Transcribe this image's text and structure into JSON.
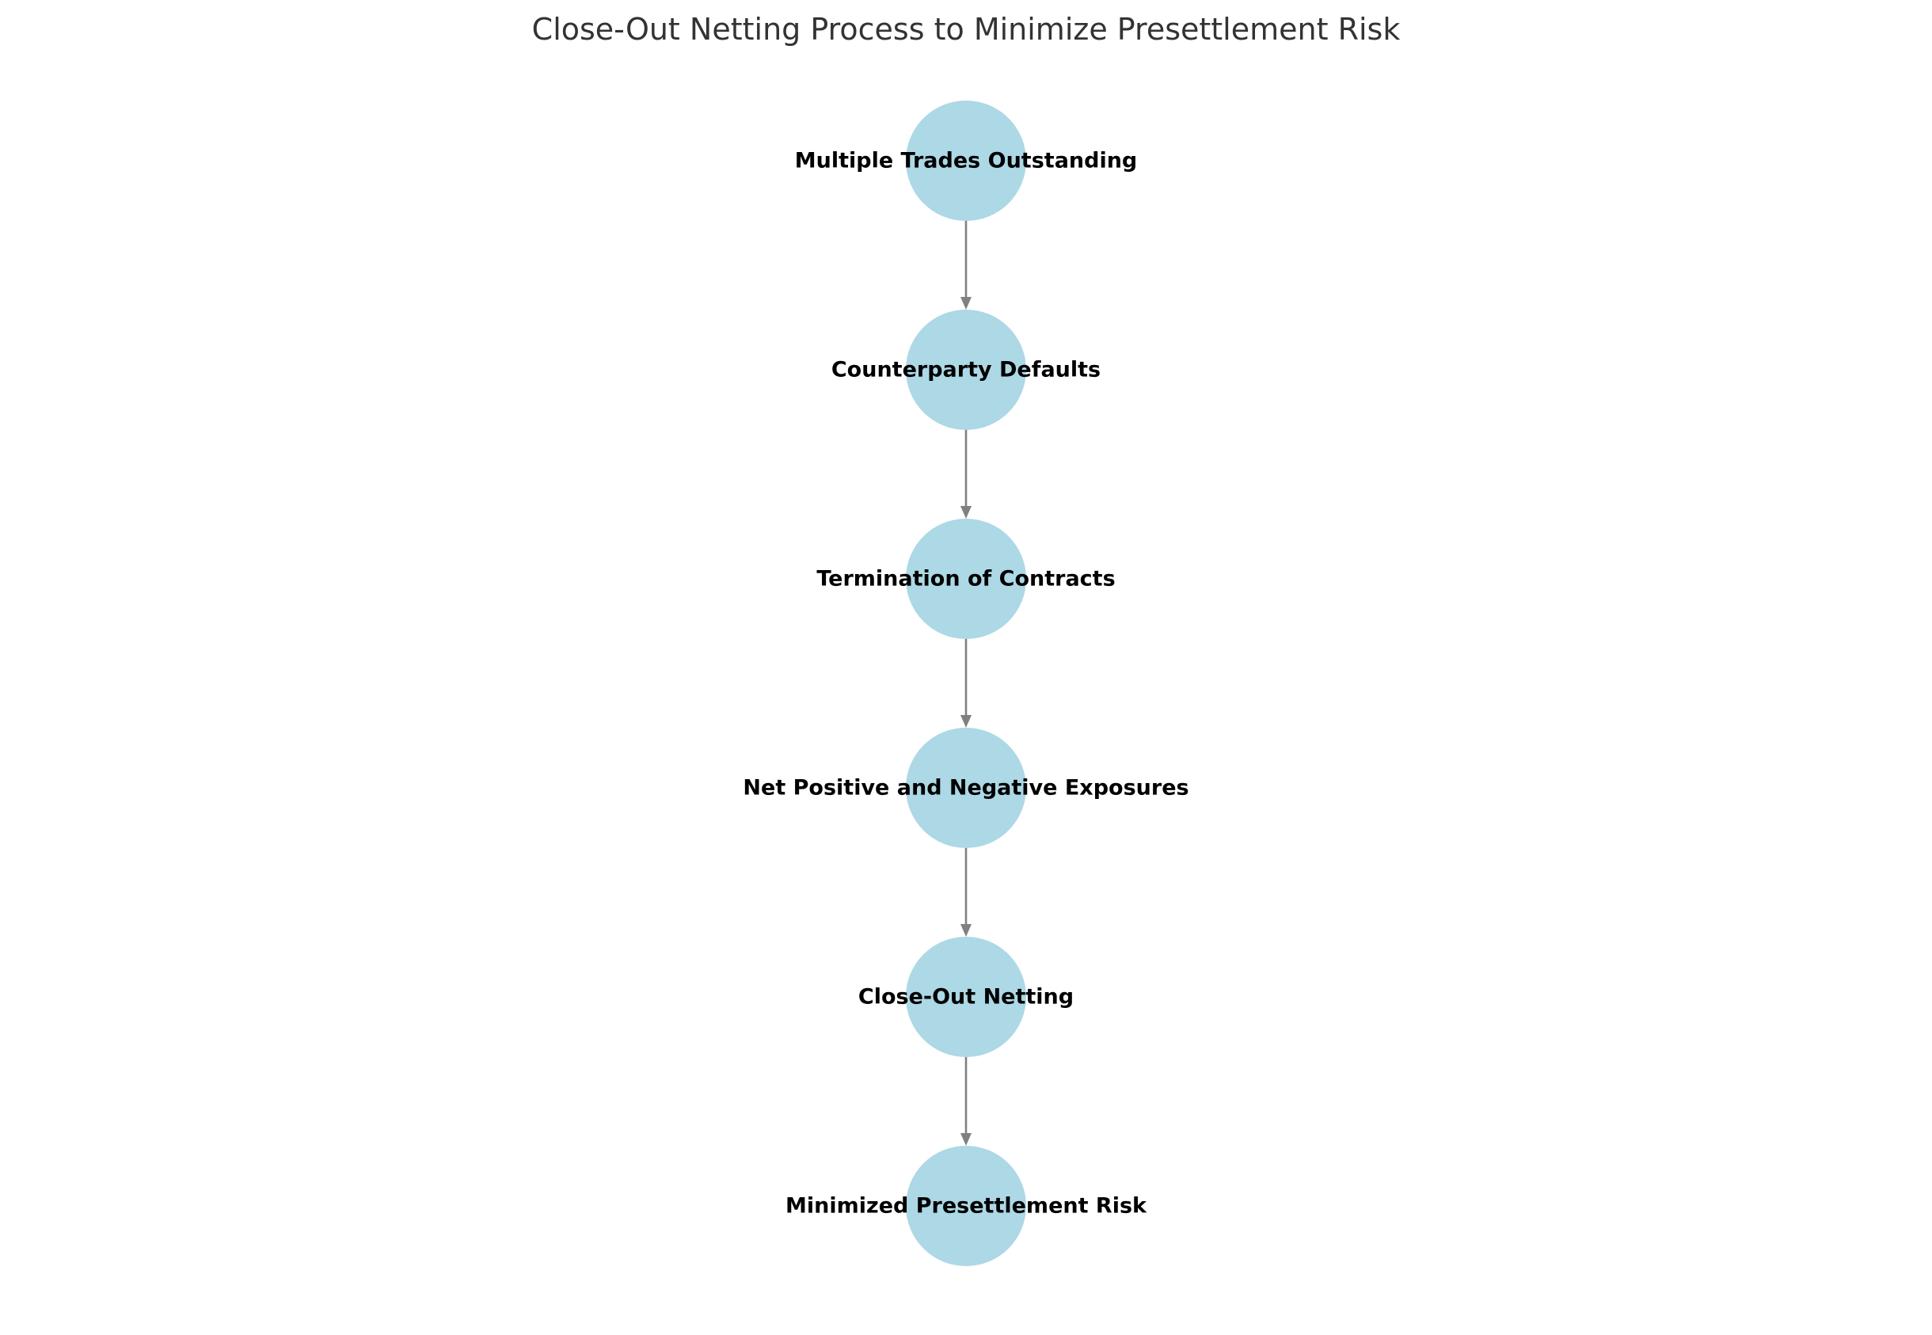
{
  "title": "Close-Out Netting Process to Minimize Presettlement Risk",
  "colors": {
    "node_fill": "#add8e6",
    "edge": "#808080",
    "label": "#000000",
    "title": "#333333"
  },
  "nodes": [
    {
      "id": "n1",
      "label": "Multiple Trades Outstanding"
    },
    {
      "id": "n2",
      "label": "Counterparty Defaults"
    },
    {
      "id": "n3",
      "label": "Termination of Contracts"
    },
    {
      "id": "n4",
      "label": "Net Positive and Negative Exposures"
    },
    {
      "id": "n5",
      "label": "Close-Out Netting"
    },
    {
      "id": "n6",
      "label": "Minimized Presettlement Risk"
    }
  ],
  "edges": [
    {
      "from": "n1",
      "to": "n2"
    },
    {
      "from": "n2",
      "to": "n3"
    },
    {
      "from": "n3",
      "to": "n4"
    },
    {
      "from": "n4",
      "to": "n5"
    },
    {
      "from": "n5",
      "to": "n6"
    }
  ]
}
